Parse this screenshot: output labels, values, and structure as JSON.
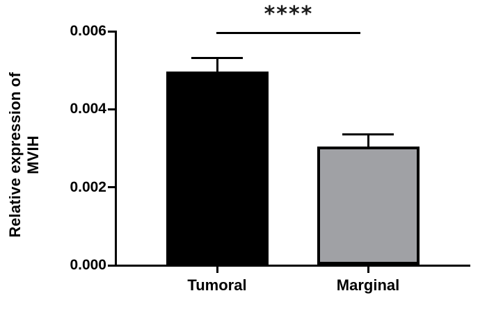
{
  "figure": {
    "background": "#ffffff",
    "axis_color": "#000000"
  },
  "chart_data": {
    "type": "bar",
    "title": "",
    "xlabel": "",
    "ylabel_lines": [
      "Relative expression of",
      "MVIH"
    ],
    "categories": [
      "Tumoral",
      "Marginal"
    ],
    "values": [
      0.00497,
      0.00305
    ],
    "errors": [
      0.00034,
      0.0003
    ],
    "error_direction": "upper",
    "bar_colors": [
      "#000000",
      "#A0A1A5"
    ],
    "bar_border_color": "#000000",
    "ylim": [
      0,
      0.006
    ],
    "yticks": [
      0,
      0.002,
      0.004,
      0.006
    ],
    "ytick_labels": [
      "0.000",
      "0.002",
      "0.004",
      "0.006"
    ],
    "grid": false,
    "legend": null,
    "significance": {
      "label": "****",
      "groups": [
        "Tumoral",
        "Marginal"
      ]
    }
  }
}
